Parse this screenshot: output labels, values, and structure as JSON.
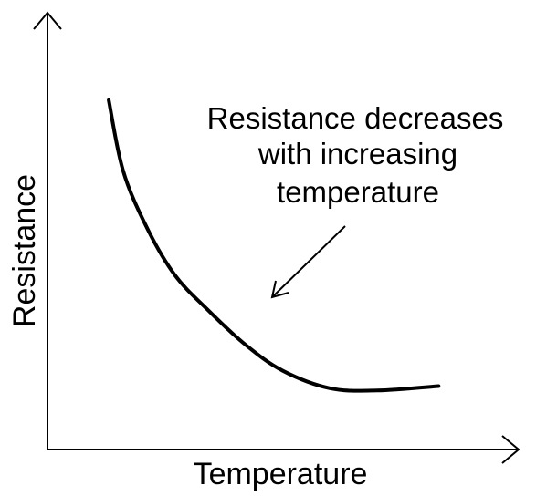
{
  "chart_data": {
    "type": "line",
    "title": "",
    "xlabel": "Temperature",
    "ylabel": "Resistance",
    "x_ticks": false,
    "y_ticks": false,
    "grid": false,
    "legend": "none",
    "xlim": [
      0,
      10
    ],
    "ylim": [
      0,
      10
    ],
    "series": [
      {
        "values_xy": [
          [
            1.3,
            8.0
          ],
          [
            1.6,
            6.4
          ],
          [
            2.1,
            5.1
          ],
          [
            2.7,
            4.0
          ],
          [
            3.4,
            3.2
          ],
          [
            4.2,
            2.4
          ],
          [
            5.0,
            1.8
          ],
          [
            6.0,
            1.4
          ],
          [
            7.0,
            1.35
          ],
          [
            8.3,
            1.45
          ]
        ]
      }
    ],
    "annotation": {
      "lines": [
        "Resistance decreases",
        "with increasing",
        "temperature"
      ],
      "arrow": true
    }
  },
  "colors": {
    "ink": "#000000",
    "background": "#ffffff"
  }
}
